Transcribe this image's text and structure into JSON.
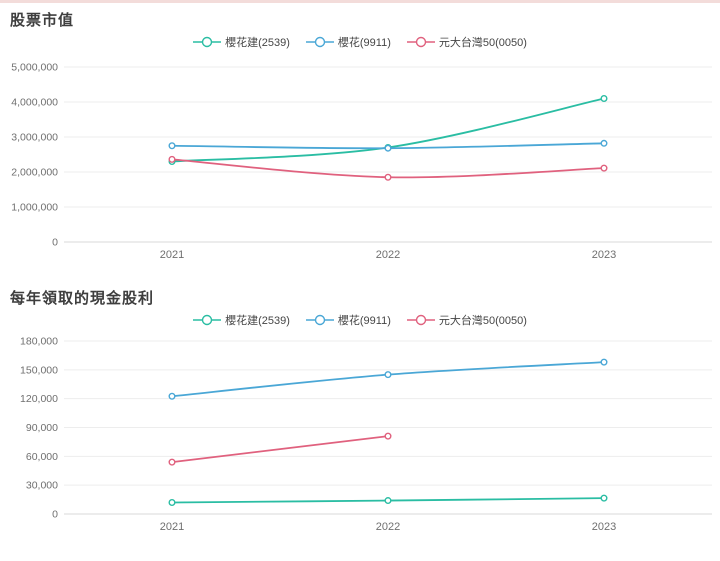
{
  "page": {
    "accent_color": "#f3dcda",
    "background": "#ffffff"
  },
  "palette": {
    "grid": "#ededed",
    "zero_line": "#d9d9d9",
    "tick_text": "#6f6f6f"
  },
  "chart_data": [
    {
      "type": "line",
      "title": "股票市值",
      "categories": [
        "2021",
        "2022",
        "2023"
      ],
      "series": [
        {
          "name": "櫻花建(2539)",
          "color": "#2abda3",
          "values": [
            2300000,
            2700000,
            4100000
          ]
        },
        {
          "name": "櫻花(9911)",
          "color": "#4aa7d6",
          "values": [
            2750000,
            2680000,
            2820000
          ]
        },
        {
          "name": "元大台灣50(0050)",
          "color": "#e0617e",
          "values": [
            2360000,
            1850000,
            2110000
          ]
        }
      ],
      "ylim": [
        0,
        5000000
      ],
      "ytick_step": 1000000,
      "ytick_labels": [
        "0",
        "1,000,000",
        "2,000,000",
        "3,000,000",
        "4,000,000",
        "5,000,000"
      ],
      "grid": true,
      "legend_position": "top-center",
      "marker": "hollow-circle",
      "curve": "smooth"
    },
    {
      "type": "line",
      "title": "每年領取的現金股利",
      "categories": [
        "2021",
        "2022",
        "2023"
      ],
      "series": [
        {
          "name": "櫻花建(2539)",
          "color": "#2abda3",
          "values": [
            12000,
            14000,
            16500
          ]
        },
        {
          "name": "櫻花(9911)",
          "color": "#4aa7d6",
          "values": [
            122500,
            145000,
            158000
          ]
        },
        {
          "name": "元大台灣50(0050)",
          "color": "#e0617e",
          "values": [
            54000,
            81000,
            null
          ]
        }
      ],
      "ylim": [
        0,
        180000
      ],
      "ytick_step": 30000,
      "ytick_labels": [
        "0",
        "30,000",
        "60,000",
        "90,000",
        "120,000",
        "150,000",
        "180,000"
      ],
      "grid": true,
      "legend_position": "top-center",
      "marker": "hollow-circle",
      "curve": "smooth"
    }
  ]
}
